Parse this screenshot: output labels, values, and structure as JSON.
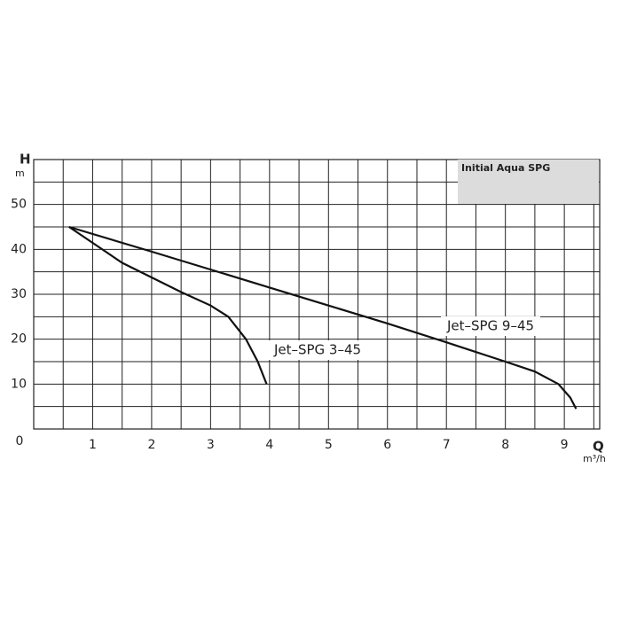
{
  "chart_data": {
    "type": "line",
    "title": "Initial Aqua SPG",
    "x_label": "Q",
    "x_unit": "m³/h",
    "y_label": "H",
    "y_unit": "m",
    "xlim": [
      0,
      9.6
    ],
    "ylim": [
      0,
      60
    ],
    "xticks": [
      1,
      2,
      3,
      4,
      5,
      6,
      7,
      8,
      9
    ],
    "yticks": [
      0,
      10,
      20,
      30,
      40,
      50
    ],
    "xgrid": [
      0,
      0.5,
      1,
      1.5,
      2,
      2.5,
      3,
      3.5,
      4,
      4.5,
      5,
      5.5,
      6,
      6.5,
      7,
      7.5,
      8,
      8.5,
      9,
      9.5
    ],
    "ygrid": [
      0,
      5,
      10,
      15,
      20,
      25,
      30,
      35,
      40,
      45,
      50,
      55,
      60
    ],
    "grid": true,
    "series": [
      {
        "name": "Jet–SPG 3–45",
        "color": "#111111",
        "x": [
          0.6,
          1.5,
          2.5,
          3.0,
          3.3,
          3.6,
          3.8,
          3.95
        ],
        "values": [
          45,
          37,
          30.5,
          27.5,
          25,
          20,
          15,
          10
        ]
      },
      {
        "name": "Jet–SPG 9–45",
        "color": "#111111",
        "x": [
          0.6,
          2,
          3,
          4,
          5,
          6,
          7,
          8,
          8.5,
          8.9,
          9.1,
          9.2
        ],
        "values": [
          45,
          39.5,
          35.5,
          31.5,
          27.5,
          23.5,
          19.3,
          15,
          12.8,
          10,
          7,
          4.5
        ]
      }
    ]
  }
}
